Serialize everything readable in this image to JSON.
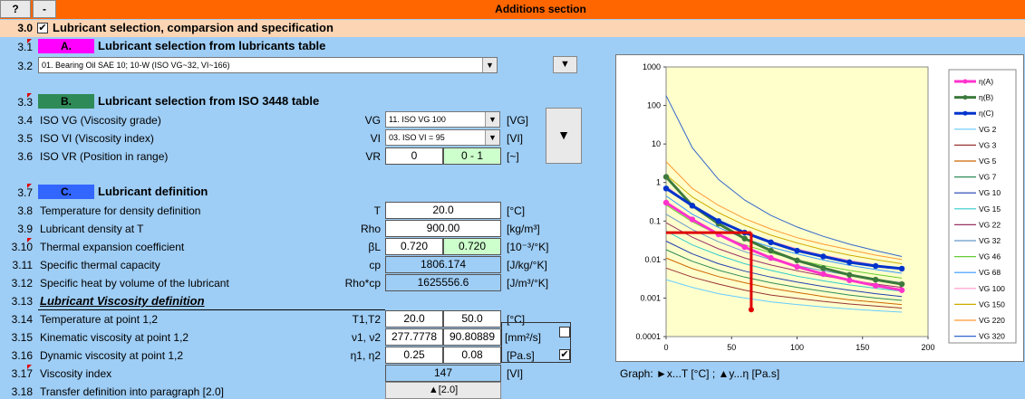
{
  "toolbar": {
    "help": "?",
    "collapse": "-",
    "title": "Additions section"
  },
  "section": {
    "num": "3.0",
    "checked": "✔",
    "title": "Lubricant selection, comparsion and specification"
  },
  "rows": {
    "r31": {
      "num": "3.1",
      "tag": "A.",
      "title": "Lubricant selection from lubricants table"
    },
    "r32": {
      "num": "3.2",
      "value": "01. Bearing Oil SAE 10; 10-W (ISO VG~32, VI~166)"
    },
    "r33": {
      "num": "3.3",
      "tag": "B.",
      "title": "Lubricant selection from ISO 3448 table"
    },
    "r34": {
      "num": "3.4",
      "label": "ISO VG (Viscosity grade)",
      "sym": "VG",
      "value": "11. ISO VG 100",
      "unit": "[VG]"
    },
    "r35": {
      "num": "3.5",
      "label": "ISO VI (Viscosity index)",
      "sym": "VI",
      "value": "03. ISO VI = 95",
      "unit": "[VI]"
    },
    "r36": {
      "num": "3.6",
      "label": "ISO VR (Position in range)",
      "sym": "VR",
      "v1": "0",
      "v2": "0 - 1",
      "unit": "[~]"
    },
    "r37": {
      "num": "3.7",
      "tag": "C.",
      "title": "Lubricant definition"
    },
    "r38": {
      "num": "3.8",
      "label": "Temperature for density definition",
      "sym": "T",
      "v1": "20.0",
      "unit": "[°C]"
    },
    "r39": {
      "num": "3.9",
      "label": "Lubricant density at T",
      "sym": "Rho",
      "v1": "900.00",
      "unit": "[kg/m³]"
    },
    "r310": {
      "num": "3.10",
      "label": "Thermal expansion coefficient",
      "sym": "βL",
      "v1": "0.720",
      "v2": "0.720",
      "unit": "[10⁻³/°K]"
    },
    "r311": {
      "num": "3.11",
      "label": "Specific thermal capacity",
      "sym": "cp",
      "v1": "1806.174",
      "unit": "[J/kg/°K]"
    },
    "r312": {
      "num": "3.12",
      "label": "Specific heat by volume of the lubricant",
      "sym": "Rho*cp",
      "v1": "1625556.6",
      "unit": "[J/m³/°K]"
    },
    "r313": {
      "num": "3.13",
      "title": "Lubricant Viscosity definition"
    },
    "r314": {
      "num": "3.14",
      "label": "Temperature at point 1,2",
      "sym": "T1,T2",
      "v1": "20.0",
      "v2": "50.0",
      "unit": "[°C]"
    },
    "r315": {
      "num": "3.15",
      "label": "Kinematic viscosity at point 1,2",
      "sym": "ν1, ν2",
      "v1": "277.7778",
      "v2": "90.80889",
      "unit": "[mm²/s]"
    },
    "r316": {
      "num": "3.16",
      "label": "Dynamic viscosity at point 1,2",
      "sym": "η1, η2",
      "v1": "0.25",
      "v2": "0.08",
      "unit": "[Pa.s]",
      "checked": "✔"
    },
    "r317": {
      "num": "3.17",
      "label": "Viscosity index",
      "v1": "147",
      "unit": "[VI]"
    },
    "r318": {
      "num": "3.18",
      "label": "Transfer definition into paragraph [2.0]",
      "button": "▲[2.0]"
    }
  },
  "buttons": {
    "down_small": "▼",
    "down_big": "▼"
  },
  "graph_caption": "Graph:  ►x...T [°C] ;     ▲y...η [Pa.s]",
  "colors": {
    "accent": "#ff6600",
    "section": "#fcd5b4",
    "bg": "#9ecdf5",
    "tagA": "#ff00ff",
    "tagB": "#2e8b57",
    "tagC": "#3366ff"
  },
  "chart_data": {
    "type": "line",
    "log_y": true,
    "xlim": [
      0,
      200
    ],
    "ylim": [
      0.0001,
      1000
    ],
    "x_ticks": [
      "0",
      "50",
      "100",
      "150",
      "200"
    ],
    "y_ticks": [
      "1000",
      "100",
      "10",
      "1",
      "0.1",
      "0.01",
      "0.001",
      "0.0001"
    ],
    "legend_position": "right",
    "x": [
      0,
      20,
      40,
      60,
      80,
      100,
      120,
      140,
      160,
      180
    ],
    "series": [
      {
        "name": "η(A)",
        "color": "#ff33cc",
        "values": [
          0.3,
          0.11,
          0.045,
          0.021,
          0.011,
          0.0065,
          0.0042,
          0.0029,
          0.0021,
          0.0016
        ]
      },
      {
        "name": "η(B)",
        "color": "#3c7a3c",
        "values": [
          1.4,
          0.25,
          0.085,
          0.035,
          0.017,
          0.0095,
          0.006,
          0.004,
          0.003,
          0.0023
        ]
      },
      {
        "name": "η(C)",
        "color": "#0033cc",
        "values": [
          0.7,
          0.25,
          0.1,
          0.05,
          0.028,
          0.017,
          0.012,
          0.0085,
          0.0068,
          0.0058
        ]
      },
      {
        "name": "VG 2",
        "color": "#66ccff",
        "values": [
          0.003,
          0.0019,
          0.0013,
          0.001,
          0.0008,
          0.00068,
          0.00059,
          0.00052,
          0.00047,
          0.00043
        ]
      },
      {
        "name": "VG 3",
        "color": "#993333",
        "values": [
          0.006,
          0.0035,
          0.0023,
          0.0016,
          0.0012,
          0.00098,
          0.00082,
          0.0007,
          0.00062,
          0.00055
        ]
      },
      {
        "name": "VG 5",
        "color": "#cc6600",
        "values": [
          0.011,
          0.0058,
          0.0036,
          0.0025,
          0.0018,
          0.0014,
          0.0011,
          0.0009,
          0.00078,
          0.00068
        ]
      },
      {
        "name": "VG 7",
        "color": "#2e8b57",
        "values": [
          0.018,
          0.009,
          0.0053,
          0.0035,
          0.0025,
          0.0019,
          0.0015,
          0.0012,
          0.001,
          0.00087
        ]
      },
      {
        "name": "VG 10",
        "color": "#1f3fb0",
        "values": [
          0.03,
          0.014,
          0.0078,
          0.005,
          0.0035,
          0.0026,
          0.002,
          0.0016,
          0.0013,
          0.0011
        ]
      },
      {
        "name": "VG 15",
        "color": "#33cccc",
        "values": [
          0.055,
          0.024,
          0.013,
          0.0078,
          0.0052,
          0.0037,
          0.0028,
          0.0022,
          0.0018,
          0.0015
        ]
      },
      {
        "name": "VG 22",
        "color": "#993366",
        "values": [
          0.09,
          0.038,
          0.019,
          0.011,
          0.0072,
          0.0051,
          0.0038,
          0.0029,
          0.0023,
          0.0019
        ]
      },
      {
        "name": "VG 32",
        "color": "#6699cc",
        "values": [
          0.15,
          0.06,
          0.029,
          0.016,
          0.01,
          0.007,
          0.0051,
          0.0039,
          0.0031,
          0.0025
        ]
      },
      {
        "name": "VG 46",
        "color": "#66cc33",
        "values": [
          0.26,
          0.095,
          0.044,
          0.024,
          0.015,
          0.0098,
          0.007,
          0.0052,
          0.0041,
          0.0033
        ]
      },
      {
        "name": "VG 68",
        "color": "#3399ff",
        "values": [
          0.45,
          0.15,
          0.068,
          0.035,
          0.021,
          0.014,
          0.0097,
          0.0071,
          0.0055,
          0.0044
        ]
      },
      {
        "name": "VG 100",
        "color": "#ff99cc",
        "values": [
          0.8,
          0.25,
          0.105,
          0.052,
          0.03,
          0.019,
          0.013,
          0.0095,
          0.0073,
          0.0058
        ]
      },
      {
        "name": "VG 150",
        "color": "#ccaa00",
        "values": [
          1.6,
          0.42,
          0.165,
          0.078,
          0.043,
          0.027,
          0.018,
          0.013,
          0.0099,
          0.0078
        ]
      },
      {
        "name": "VG 220",
        "color": "#ff9933",
        "values": [
          3.5,
          0.7,
          0.255,
          0.115,
          0.062,
          0.037,
          0.025,
          0.018,
          0.013,
          0.01
        ]
      },
      {
        "name": "VG 320",
        "color": "#3366cc",
        "values": [
          180,
          8,
          1.2,
          0.35,
          0.14,
          0.07,
          0.04,
          0.025,
          0.017,
          0.012
        ]
      }
    ],
    "marker": {
      "x": 65,
      "y": 0.05,
      "color": "#e00000"
    }
  }
}
